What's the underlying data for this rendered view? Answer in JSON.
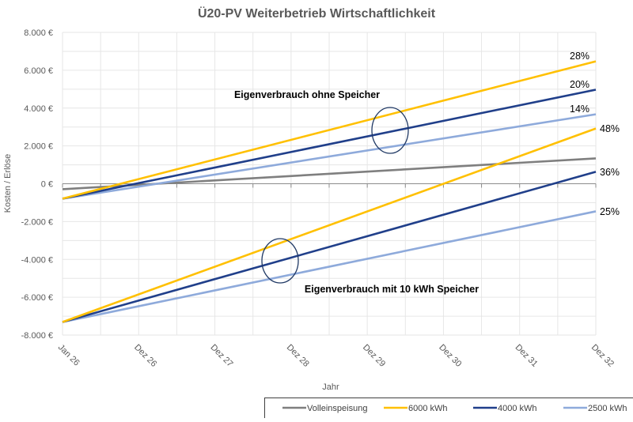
{
  "chart_data": {
    "type": "line",
    "title": "Ü20-PV Weiterbetrieb Wirtschaftlichkeit",
    "xlabel": "Jahr",
    "ylabel": "Kosten / Erlöse",
    "ylim": [
      -8000,
      8000
    ],
    "yticks": [
      8000,
      6000,
      4000,
      2000,
      0,
      -2000,
      -4000,
      -6000,
      -8000
    ],
    "ytick_labels": [
      "8.000 €",
      "6.000 €",
      "4.000 €",
      "2.000 €",
      "0 €",
      "-2.000 €",
      "-4.000 €",
      "-6.000 €",
      "-8.000 €"
    ],
    "x_tick_labels": [
      "Jan 26",
      "Dez 26",
      "Dez 27",
      "Dez 28",
      "Dez 29",
      "Dez 30",
      "Dez 31",
      "Dez 32"
    ],
    "x_periods": 14,
    "grid": true,
    "legend_position": "bottom-right",
    "series": [
      {
        "name": "Volleinspeisung",
        "color": "#7f7f7f",
        "start": -290,
        "end": 1340,
        "end_label": ""
      },
      {
        "name": "6000 kWh",
        "group": "ohne Speicher",
        "color": "#ffc000",
        "start": -790,
        "end": 6470,
        "end_label": "28%"
      },
      {
        "name": "4000 kWh",
        "group": "ohne Speicher",
        "color": "#203f8a",
        "start": -790,
        "end": 4970,
        "end_label": "20%"
      },
      {
        "name": "2500 kWh",
        "group": "ohne Speicher",
        "color": "#8eaadb",
        "start": -790,
        "end": 3670,
        "end_label": "14%"
      },
      {
        "name": "6000 kWh",
        "group": "mit 10 kWh Speicher",
        "color": "#ffc000",
        "start": -7310,
        "end": 2920,
        "end_label": "48%"
      },
      {
        "name": "4000 kWh",
        "group": "mit 10 kWh Speicher",
        "color": "#203f8a",
        "start": -7310,
        "end": 630,
        "end_label": "36%"
      },
      {
        "name": "2500 kWh",
        "group": "mit 10 kWh Speicher",
        "color": "#8eaadb",
        "start": -7310,
        "end": -1460,
        "end_label": "25%"
      }
    ],
    "annotations": [
      {
        "text": "Eigenverbrauch ohne Speicher"
      },
      {
        "text": "Eigenverbrauch mit 10 kWh Speicher"
      }
    ],
    "legend": [
      {
        "label": "Volleinspeisung",
        "color": "#7f7f7f"
      },
      {
        "label": "6000 kWh",
        "color": "#ffc000"
      },
      {
        "label": "4000 kWh",
        "color": "#203f8a"
      },
      {
        "label": "2500 kWh",
        "color": "#8eaadb"
      }
    ]
  }
}
